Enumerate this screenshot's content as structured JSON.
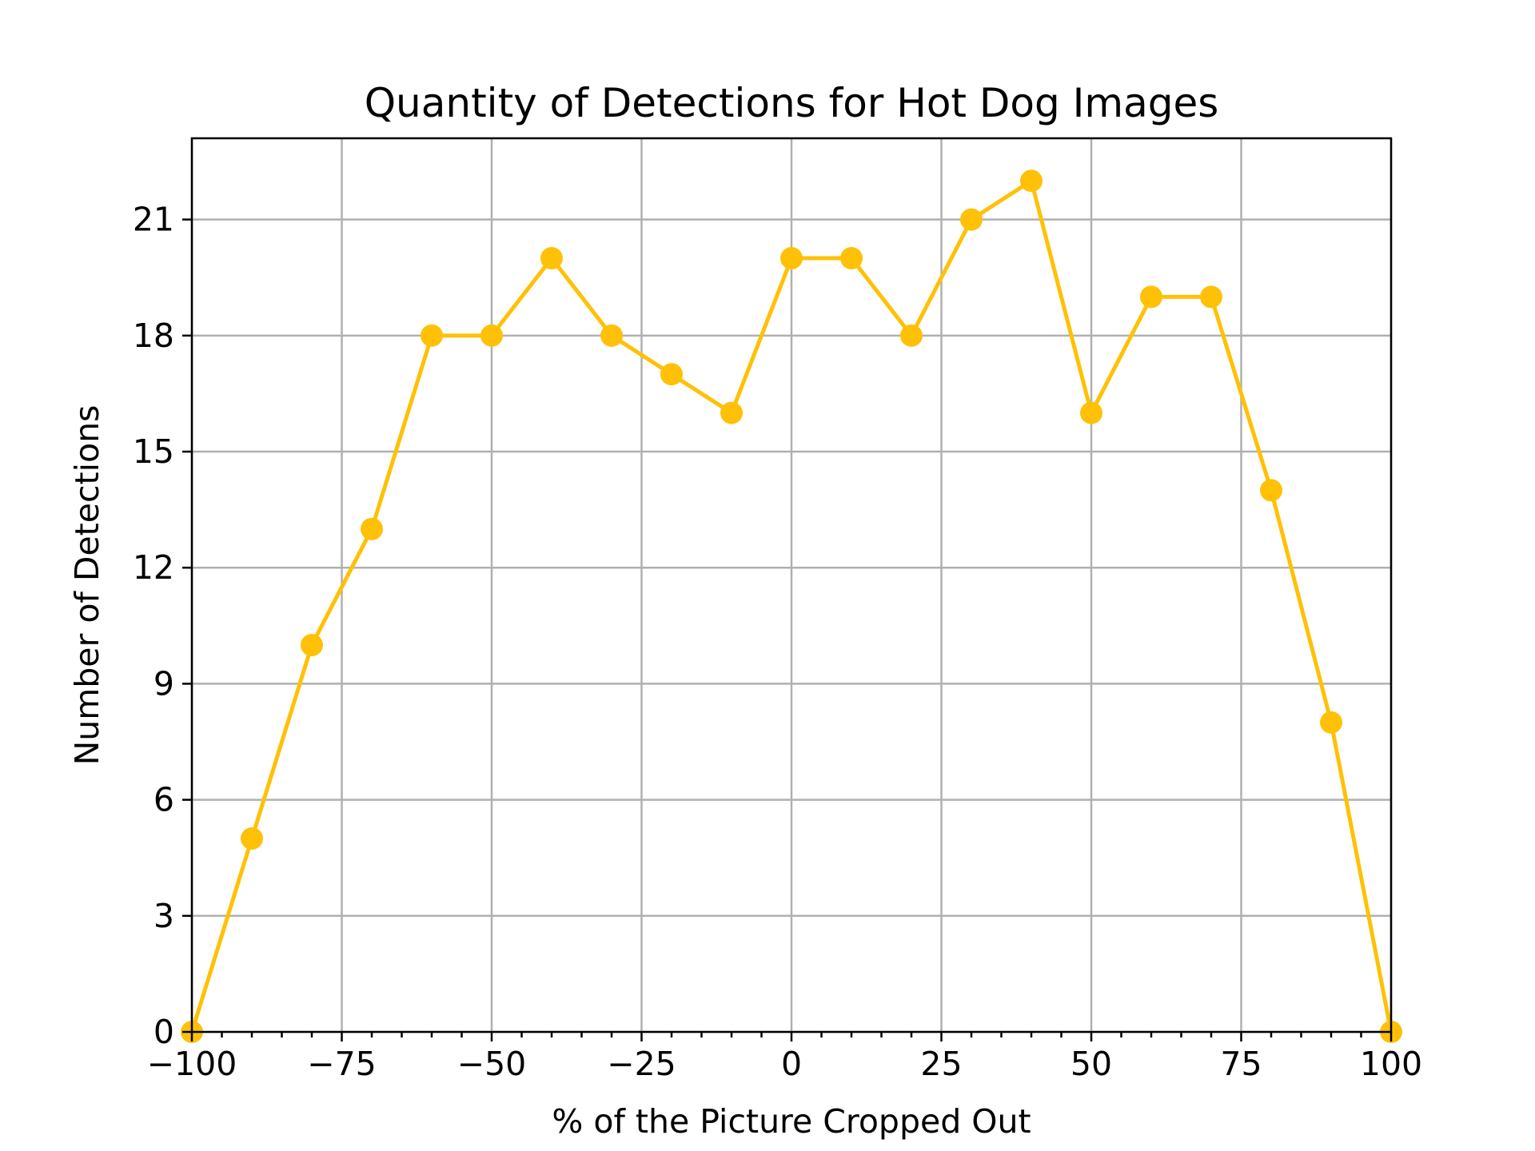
{
  "chart_data": {
    "type": "line",
    "title": "Quantity of Detections for Hot Dog Images",
    "xlabel": "% of the Picture Cropped Out",
    "ylabel": "Number of Detections",
    "xlim": [
      -100,
      100
    ],
    "ylim": [
      0,
      23.1
    ],
    "x_ticks": [
      -100,
      -75,
      -50,
      -25,
      0,
      25,
      50,
      75,
      100
    ],
    "x_tick_labels": [
      "−100",
      "−75",
      "−50",
      "−25",
      "0",
      "25",
      "50",
      "75",
      "100"
    ],
    "x_minor_tick_step": 5,
    "y_ticks": [
      0,
      3,
      6,
      9,
      12,
      15,
      18,
      21
    ],
    "y_tick_labels": [
      "0",
      "3",
      "6",
      "9",
      "12",
      "15",
      "18",
      "21"
    ],
    "grid": true,
    "series": [
      {
        "color": "#FFC107",
        "x": [
          -100,
          -90,
          -80,
          -70,
          -60,
          -50,
          -40,
          -30,
          -20,
          -10,
          0,
          10,
          20,
          30,
          40,
          50,
          60,
          70,
          80,
          90,
          100
        ],
        "y": [
          0,
          5,
          10,
          13,
          18,
          18,
          20,
          18,
          17,
          16,
          20,
          20,
          18,
          21,
          22,
          16,
          19,
          19,
          14,
          8,
          0
        ]
      }
    ]
  }
}
